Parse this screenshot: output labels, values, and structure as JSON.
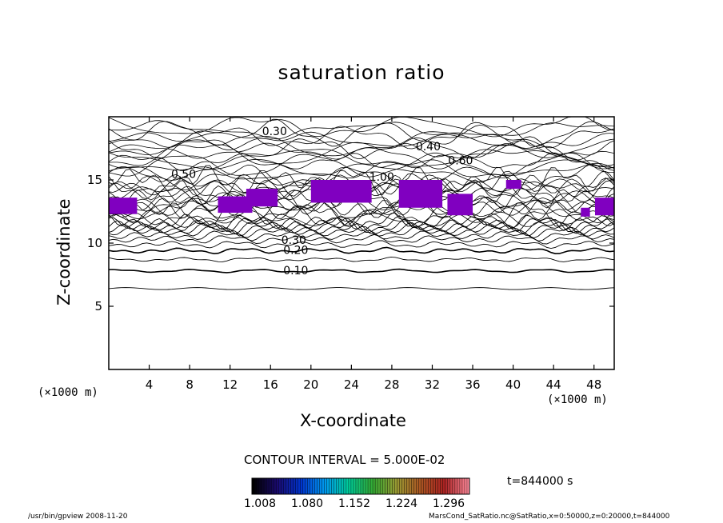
{
  "chart_data": {
    "type": "heatmap",
    "title": "saturation ratio",
    "xlabel": "X-coordinate",
    "ylabel": "Z-coordinate",
    "x_unit_left": "(×1000 m)",
    "x_unit_right": "(×1000 m)",
    "xlim": [
      0,
      50
    ],
    "ylim": [
      0,
      20
    ],
    "x_ticks": [
      4,
      8,
      12,
      16,
      20,
      24,
      28,
      32,
      36,
      40,
      44,
      48
    ],
    "y_ticks": [
      5,
      10,
      15
    ],
    "contour_interval_text": "CONTOUR INTERVAL = 5.000E-02",
    "contour_interval": 0.05,
    "contour_labels": [
      {
        "text": "0.10",
        "x": 18.5,
        "z": 7.8
      },
      {
        "text": "0.20",
        "x": 18.5,
        "z": 9.4
      },
      {
        "text": "0.30",
        "x": 18.3,
        "z": 10.2
      },
      {
        "text": "0.30",
        "x": 16.4,
        "z": 18.8
      },
      {
        "text": "0.40",
        "x": 31.6,
        "z": 17.6
      },
      {
        "text": "0.60",
        "x": 34.8,
        "z": 16.5
      },
      {
        "text": "0.50",
        "x": 7.4,
        "z": 15.4
      },
      {
        "text": "1.00",
        "x": 27.0,
        "z": 15.2
      }
    ],
    "colorbar_ticks": [
      "1.008",
      "1.080",
      "1.152",
      "1.224",
      "1.296"
    ],
    "colorbar_colors": [
      "#000000",
      "#1a0a6e",
      "#0033cc",
      "#0099ee",
      "#00cc99",
      "#33aa33",
      "#999933",
      "#aa5522",
      "#aa2222",
      "#ff8899"
    ],
    "supersaturated_color": "#8000c0",
    "supersaturated_regions": [
      {
        "x": [
          0,
          2.8
        ],
        "z": [
          12.3,
          13.6
        ]
      },
      {
        "x": [
          10.8,
          14.2
        ],
        "z": [
          12.4,
          13.7
        ]
      },
      {
        "x": [
          13.6,
          16.7
        ],
        "z": [
          12.9,
          14.3
        ]
      },
      {
        "x": [
          20.0,
          26.0
        ],
        "z": [
          13.2,
          15.0
        ]
      },
      {
        "x": [
          28.7,
          33.0
        ],
        "z": [
          12.8,
          15.0
        ]
      },
      {
        "x": [
          33.5,
          36.0
        ],
        "z": [
          12.2,
          13.9
        ]
      },
      {
        "x": [
          39.3,
          40.8
        ],
        "z": [
          14.3,
          15.0
        ]
      },
      {
        "x": [
          46.7,
          47.6
        ],
        "z": [
          12.1,
          12.8
        ]
      },
      {
        "x": [
          48.1,
          50.0
        ],
        "z": [
          12.2,
          13.6
        ]
      }
    ],
    "time_label": "t=844000 s"
  },
  "footer": {
    "left": "/usr/bin/gpview  2008-11-20",
    "right": "MarsCond_SatRatio.nc@SatRatio,x=0:50000,z=0:20000,t=844000"
  }
}
